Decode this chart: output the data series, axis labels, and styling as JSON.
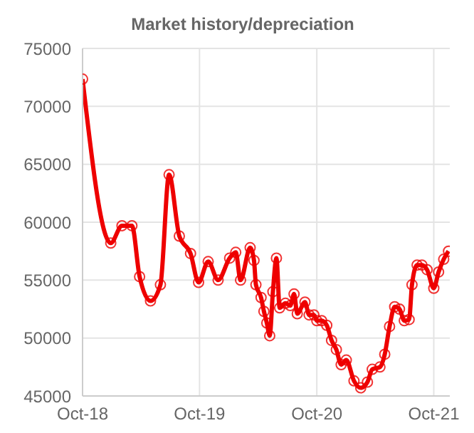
{
  "chart_data": {
    "type": "line",
    "title": "Market history/depreciation",
    "x": [
      "2018-10-01",
      "2018-12-28",
      "2019-02-01",
      "2019-03-04",
      "2019-03-28",
      "2019-05-01",
      "2019-06-01",
      "2019-06-28",
      "2019-07-30",
      "2019-09-03",
      "2019-09-28",
      "2019-10-28",
      "2019-11-28",
      "2020-01-03",
      "2020-01-22",
      "2020-02-06",
      "2020-03-07",
      "2020-03-19",
      "2020-03-25",
      "2020-04-10",
      "2020-04-19",
      "2020-04-28",
      "2020-05-07",
      "2020-05-17",
      "2020-05-28",
      "2020-06-07",
      "2020-06-25",
      "2020-07-10",
      "2020-07-22",
      "2020-08-01",
      "2020-08-25",
      "2020-09-07",
      "2020-09-22",
      "2020-10-01",
      "2020-10-16",
      "2020-11-01",
      "2020-11-16",
      "2020-12-01",
      "2020-12-16",
      "2021-01-01",
      "2021-01-25",
      "2021-02-15",
      "2021-03-08",
      "2021-03-23",
      "2021-04-16",
      "2021-05-01",
      "2021-05-16",
      "2021-06-01",
      "2021-06-16",
      "2021-07-01",
      "2021-07-16",
      "2021-07-25",
      "2021-08-10",
      "2021-08-25",
      "2021-09-10",
      "2021-10-01",
      "2021-10-16",
      "2021-11-01",
      "2021-11-16"
    ],
    "series": [
      {
        "color": "#ee0000",
        "values": [
          72350,
          58200,
          59700,
          59700,
          55300,
          53200,
          54600,
          64100,
          58800,
          57300,
          54800,
          56600,
          55000,
          56900,
          57400,
          55000,
          57800,
          56700,
          54600,
          53500,
          52300,
          51300,
          50200,
          54000,
          56900,
          52600,
          53000,
          52800,
          53800,
          52100,
          53100,
          52000,
          52000,
          51500,
          51500,
          51100,
          49800,
          49000,
          47700,
          48100,
          46300,
          45700,
          46200,
          47300,
          47500,
          48600,
          51000,
          52700,
          52500,
          51500,
          51600,
          54600,
          56300,
          56300,
          55900,
          54300,
          55700,
          56800,
          57500
        ]
      }
    ],
    "xlim": [
      "2018-10-01",
      "2021-11-20"
    ],
    "xticks": [
      {
        "value": "2018-10-01",
        "label": "Oct-18"
      },
      {
        "value": "2019-10-01",
        "label": "Oct-19"
      },
      {
        "value": "2020-10-01",
        "label": "Oct-20"
      },
      {
        "value": "2021-10-01",
        "label": "Oct-21"
      }
    ],
    "ylim": [
      45000,
      75000
    ],
    "yticks": [
      45000,
      50000,
      55000,
      60000,
      65000,
      70000,
      75000
    ],
    "grid": true,
    "marker": "circle",
    "line_style": "solid",
    "legend": false
  }
}
